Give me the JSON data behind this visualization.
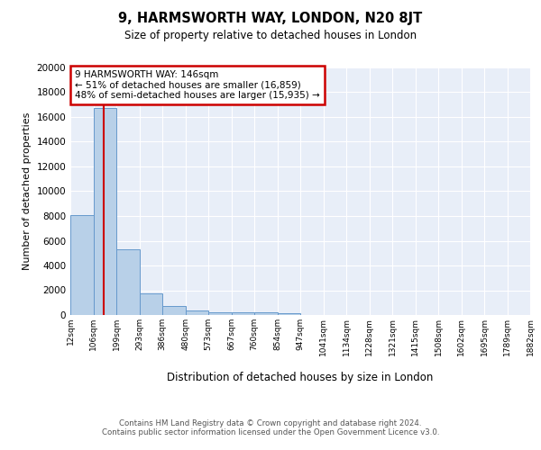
{
  "title": "9, HARMSWORTH WAY, LONDON, N20 8JT",
  "subtitle": "Size of property relative to detached houses in London",
  "xlabel": "Distribution of detached houses by size in London",
  "ylabel": "Number of detached properties",
  "bar_color": "#b8d0e8",
  "bar_edge_color": "#6699cc",
  "background_color": "#e8eef8",
  "grid_color": "#ffffff",
  "bins": [
    12,
    106,
    199,
    293,
    386,
    480,
    573,
    667,
    760,
    854,
    947,
    1041,
    1134,
    1228,
    1321,
    1415,
    1508,
    1602,
    1695,
    1789,
    1882
  ],
  "bar_heights": [
    8100,
    16700,
    5300,
    1750,
    750,
    350,
    250,
    200,
    200,
    150,
    0,
    0,
    0,
    0,
    0,
    0,
    0,
    0,
    0,
    0
  ],
  "property_size": 146,
  "annotation_text": "9 HARMSWORTH WAY: 146sqm\n← 51% of detached houses are smaller (16,859)\n48% of semi-detached houses are larger (15,935) →",
  "annotation_box_color": "#cc0000",
  "red_line_color": "#cc0000",
  "ylim": [
    0,
    20000
  ],
  "yticks": [
    0,
    2000,
    4000,
    6000,
    8000,
    10000,
    12000,
    14000,
    16000,
    18000,
    20000
  ],
  "footer_text": "Contains HM Land Registry data © Crown copyright and database right 2024.\nContains public sector information licensed under the Open Government Licence v3.0.",
  "tick_labels": [
    "12sqm",
    "106sqm",
    "199sqm",
    "293sqm",
    "386sqm",
    "480sqm",
    "573sqm",
    "667sqm",
    "760sqm",
    "854sqm",
    "947sqm",
    "1041sqm",
    "1134sqm",
    "1228sqm",
    "1321sqm",
    "1415sqm",
    "1508sqm",
    "1602sqm",
    "1695sqm",
    "1789sqm",
    "1882sqm"
  ]
}
